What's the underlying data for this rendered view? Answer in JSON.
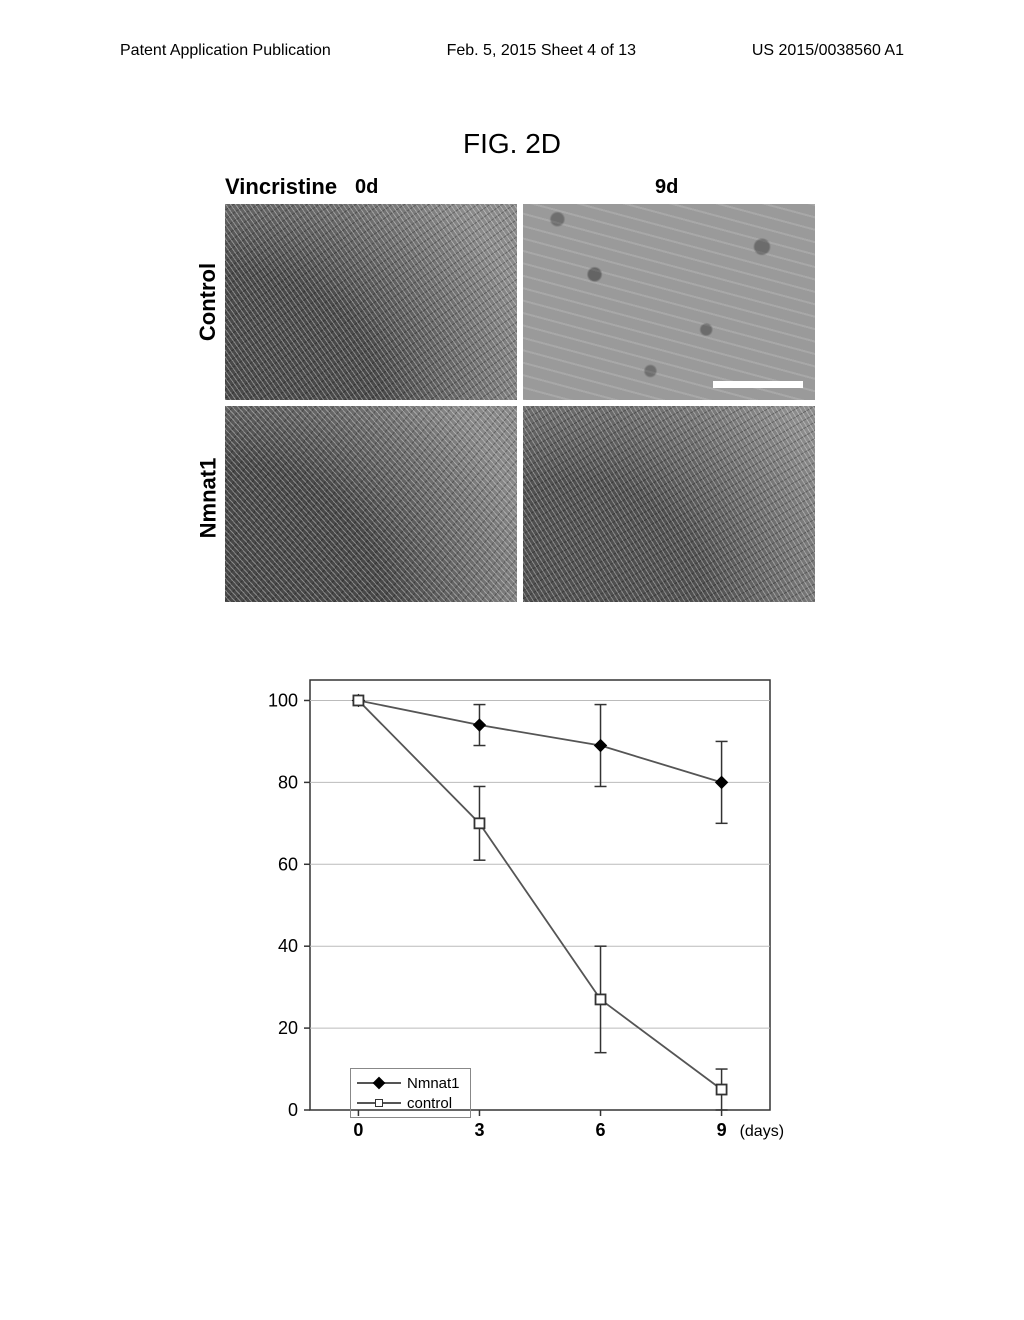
{
  "header": {
    "left": "Patent Application Publication",
    "center": "Feb. 5, 2015  Sheet 4 of 13",
    "right": "US 2015/0038560 A1"
  },
  "figure_title": "FIG. 2D",
  "micrographs": {
    "treatment_label": "Vincristine",
    "time_labels": [
      "0d",
      "9d"
    ],
    "row_labels": [
      "Control",
      "Nmnat1"
    ],
    "scalebar_color": "#ffffff"
  },
  "chart": {
    "type": "line",
    "xlabel_suffix": "(days)",
    "xlim": [
      -1.2,
      10.2
    ],
    "ylim": [
      0,
      105
    ],
    "xticks": [
      0,
      3,
      6,
      9
    ],
    "yticks": [
      0,
      20,
      40,
      60,
      80,
      100
    ],
    "tick_fontsize": 18,
    "axis_color": "#333333",
    "grid_color": "#bbbbbb",
    "background_color": "#ffffff",
    "series": [
      {
        "name": "Nmnat1",
        "marker": "diamond-filled",
        "color": "#000000",
        "line_color": "#555555",
        "points": [
          {
            "x": 0,
            "y": 100,
            "err": 0
          },
          {
            "x": 3,
            "y": 94,
            "err": 5
          },
          {
            "x": 6,
            "y": 89,
            "err": 10
          },
          {
            "x": 9,
            "y": 80,
            "err": 10
          }
        ]
      },
      {
        "name": "control",
        "marker": "square-open",
        "color": "#333333",
        "line_color": "#555555",
        "points": [
          {
            "x": 0,
            "y": 100,
            "err": 0
          },
          {
            "x": 3,
            "y": 70,
            "err": 9
          },
          {
            "x": 6,
            "y": 27,
            "err": 13
          },
          {
            "x": 9,
            "y": 5,
            "err": 5
          }
        ]
      }
    ],
    "legend": {
      "items": [
        "Nmnat1",
        "control"
      ],
      "border_color": "#888888",
      "fontsize": 15
    }
  }
}
